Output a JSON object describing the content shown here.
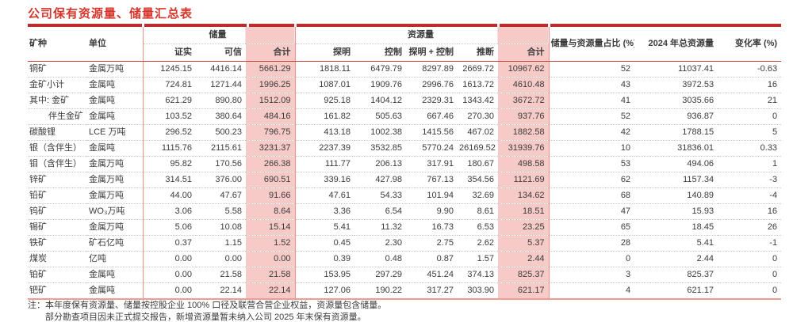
{
  "title": "公司保有资源量、储量汇总表",
  "colors": {
    "title_red": "#d6362c",
    "top_bar_red": "#bf2a2a",
    "header_underline_red": "#c9443b",
    "highlight_pink": "#f5cac7",
    "separator_pink": "#e8948c",
    "bottom_border_pink": "#ee9c94",
    "text": "#3b3b3b"
  },
  "table": {
    "groups": {
      "reserve": "储量",
      "resource": "资源量"
    },
    "headers": {
      "mineral": "矿种",
      "unit": "单位",
      "proved": "证实",
      "probable": "可信",
      "reserve_total": "合计",
      "measured": "探明",
      "indicated": "控制",
      "measured_indicated": "探明 + 控制",
      "inferred": "推断",
      "resource_total": "合计",
      "ratio": "储量与资源量占比 (%)",
      "total_2024": "2024 年总资源量",
      "change": "变化率 (%)"
    },
    "rows": [
      {
        "indent": false,
        "cells": [
          "铜矿",
          "金属万吨",
          "1245.15",
          "4416.14",
          "5661.29",
          "1818.11",
          "6479.79",
          "8297.89",
          "2669.72",
          "10967.62",
          "52",
          "11037.41",
          "-0.63"
        ]
      },
      {
        "indent": false,
        "cells": [
          "金矿小计",
          "金属吨",
          "724.81",
          "1271.44",
          "1996.25",
          "1087.01",
          "1909.76",
          "2996.76",
          "1613.72",
          "4610.48",
          "43",
          "3972.53",
          "16"
        ]
      },
      {
        "indent": false,
        "cells": [
          "其中: 金矿",
          "金属吨",
          "621.29",
          "890.80",
          "1512.09",
          "925.18",
          "1404.12",
          "2329.31",
          "1343.42",
          "3672.72",
          "41",
          "3035.66",
          "21"
        ]
      },
      {
        "indent": true,
        "cells": [
          "伴生金矿",
          "金属吨",
          "103.52",
          "380.64",
          "484.16",
          "161.82",
          "505.63",
          "667.46",
          "270.30",
          "937.76",
          "52",
          "936.87",
          "0"
        ]
      },
      {
        "indent": false,
        "cells": [
          "碳酸锂",
          "LCE 万吨",
          "296.52",
          "500.23",
          "796.75",
          "413.18",
          "1002.38",
          "1415.56",
          "467.02",
          "1882.58",
          "42",
          "1788.15",
          "5"
        ]
      },
      {
        "indent": false,
        "cells": [
          "银（含伴生）",
          "金属吨",
          "1115.76",
          "2115.61",
          "3231.37",
          "2237.39",
          "3532.85",
          "5770.24",
          "26169.52",
          "31939.76",
          "10",
          "31836.01",
          "0.33"
        ]
      },
      {
        "indent": false,
        "cells": [
          "钼（含伴生）",
          "金属万吨",
          "95.82",
          "170.56",
          "266.38",
          "111.77",
          "206.13",
          "317.91",
          "180.67",
          "498.58",
          "53",
          "494.06",
          "1"
        ]
      },
      {
        "indent": false,
        "cells": [
          "锌矿",
          "金属万吨",
          "314.51",
          "376.00",
          "690.51",
          "339.16",
          "427.98",
          "767.13",
          "354.56",
          "1121.69",
          "62",
          "1157.34",
          "-3"
        ]
      },
      {
        "indent": false,
        "cells": [
          "铅矿",
          "金属万吨",
          "44.00",
          "47.67",
          "91.66",
          "47.61",
          "54.33",
          "101.94",
          "32.69",
          "134.62",
          "68",
          "140.89",
          "-4"
        ]
      },
      {
        "indent": false,
        "cells": [
          "钨矿",
          "WO₃万吨",
          "3.06",
          "5.58",
          "8.64",
          "3.36",
          "6.54",
          "9.90",
          "8.61",
          "18.51",
          "47",
          "15.93",
          "16"
        ]
      },
      {
        "indent": false,
        "cells": [
          "锡矿",
          "金属万吨",
          "5.06",
          "10.08",
          "15.14",
          "5.41",
          "11.32",
          "16.73",
          "6.53",
          "23.25",
          "65",
          "18.45",
          "26"
        ]
      },
      {
        "indent": false,
        "cells": [
          "铁矿",
          "矿石亿吨",
          "0.37",
          "1.15",
          "1.52",
          "0.45",
          "2.30",
          "2.75",
          "2.62",
          "5.37",
          "28",
          "5.41",
          "-1"
        ]
      },
      {
        "indent": false,
        "cells": [
          "煤炭",
          "亿吨",
          "0.00",
          "0.00",
          "0.00",
          "0.39",
          "0.48",
          "0.87",
          "1.57",
          "2.44",
          "0",
          "2.44",
          "0"
        ]
      },
      {
        "indent": false,
        "cells": [
          "铂矿",
          "金属吨",
          "0.00",
          "21.58",
          "21.58",
          "153.95",
          "297.29",
          "451.24",
          "374.13",
          "825.37",
          "3",
          "825.37",
          "0"
        ]
      },
      {
        "indent": false,
        "cells": [
          "钯矿",
          "金属吨",
          "0.00",
          "22.14",
          "22.14",
          "127.06",
          "190.22",
          "317.27",
          "303.90",
          "621.17",
          "4",
          "621.17",
          "0"
        ]
      }
    ]
  },
  "notes": {
    "line1": "注：本年度保有资源量、储量按控股企业 100% 口径及联营合营企业权益，资源量包含储量。",
    "line2": "部分勘查项目因未正式提交报告，新增资源量暂未纳入公司 2025 年末保有资源量。"
  }
}
